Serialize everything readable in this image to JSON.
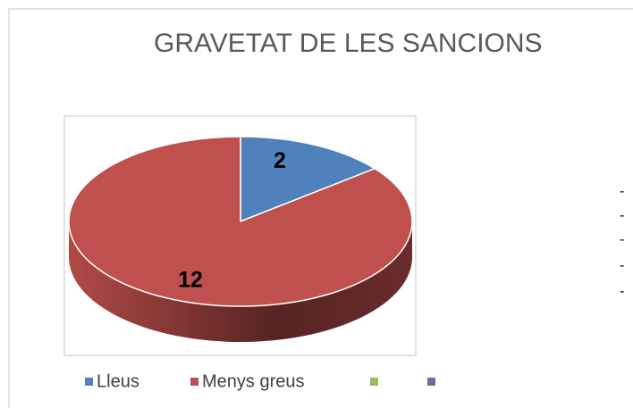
{
  "chart_data": {
    "type": "pie",
    "title": "GRAVETAT DE LES SANCIONS",
    "categories": [
      "Lleus",
      "Menys greus",
      null,
      null
    ],
    "values": [
      2,
      12,
      null,
      null
    ],
    "colors": [
      "#4f81bd",
      "#c0504d",
      "#9bbb59",
      "#8064a2"
    ],
    "legend": "bottom",
    "three_d": true
  },
  "side_list": [
    "-",
    "-",
    "-",
    "-",
    "-"
  ]
}
